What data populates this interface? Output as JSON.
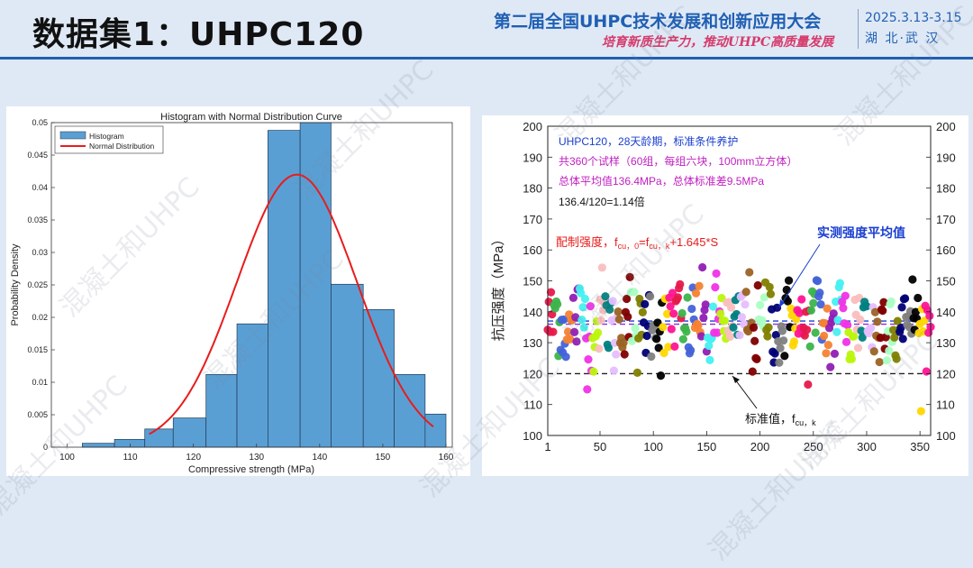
{
  "header": {
    "title": "数据集1：UHPC120",
    "conference": "第二届全国UHPC技术发展和创新应用大会",
    "slogan": "培育新质生产力，推动UHPC高质量发展",
    "date": "2025.3.13-3.15",
    "location": "湖 北·武 汉"
  },
  "watermark": "混凝土和UHPC",
  "colors": {
    "bar_fill": "#5a9fd4",
    "curve": "#e81c1c",
    "header_blue": "#1f5fb4",
    "slogan_red": "#d63a6b"
  },
  "chart_data": [
    {
      "type": "bar",
      "title": "Histogram with Normal Distribution Curve",
      "xlabel": "Compressive strength (MPa)",
      "ylabel": "Probability Density",
      "xlim": [
        97.5,
        161
      ],
      "ylim": [
        0,
        0.05
      ],
      "xticks": [
        100,
        110,
        120,
        130,
        140,
        150,
        160
      ],
      "yticks": [
        0,
        0.005,
        0.01,
        0.015,
        0.02,
        0.025,
        0.03,
        0.035,
        0.04,
        0.045,
        0.05
      ],
      "legend": {
        "position": "top-left",
        "entries": [
          "Histogram",
          "Normal Distribution"
        ]
      },
      "bins": [
        {
          "x0": 102.4,
          "x1": 107.5,
          "value": 0.0006
        },
        {
          "x0": 107.5,
          "x1": 112.3,
          "value": 0.0012
        },
        {
          "x0": 112.3,
          "x1": 116.8,
          "value": 0.0028
        },
        {
          "x0": 116.8,
          "x1": 122.0,
          "value": 0.0045
        },
        {
          "x0": 122.0,
          "x1": 126.9,
          "value": 0.0112
        },
        {
          "x0": 126.9,
          "x1": 131.8,
          "value": 0.019
        },
        {
          "x0": 131.8,
          "x1": 136.9,
          "value": 0.0488
        },
        {
          "x0": 136.9,
          "x1": 141.8,
          "value": 0.05
        },
        {
          "x0": 141.8,
          "x1": 146.9,
          "value": 0.0251
        },
        {
          "x0": 146.9,
          "x1": 151.8,
          "value": 0.0212
        },
        {
          "x0": 151.8,
          "x1": 156.7,
          "value": 0.0112
        },
        {
          "x0": 156.7,
          "x1": 160.0,
          "value": 0.0051
        }
      ],
      "normal": {
        "mean": 136.4,
        "sd": 9.5,
        "x_range": [
          113,
          158
        ]
      }
    },
    {
      "type": "scatter",
      "xlim": [
        1,
        360
      ],
      "ylim": [
        100,
        200
      ],
      "xticks": [
        1,
        50,
        100,
        150,
        200,
        250,
        300,
        350
      ],
      "yticks": [
        100,
        110,
        120,
        130,
        140,
        150,
        160,
        170,
        180,
        190,
        200
      ],
      "ylabel": "抗压强度（MPa）",
      "n_points": 360,
      "mean": 136.4,
      "sd": 9.5,
      "reference_lines": [
        {
          "y": 137.0,
          "color": "#1a3fd0",
          "style": "dash"
        },
        {
          "y": 136.0,
          "color": "#8a2be2",
          "style": "dash"
        },
        {
          "y": 120,
          "color": "#222222",
          "style": "dash"
        }
      ],
      "annotations": [
        {
          "text": "UHPC120，28天龄期，标准条件养护",
          "color": "#1a3fd0"
        },
        {
          "text": "共360个试样（60组，每组六块，100mm立方体）",
          "color": "#c020c0"
        },
        {
          "text": "总体平均值136.4MPa，总体标准差9.5MPa",
          "color": "#c020c0"
        },
        {
          "text": "136.4/120=1.14倍",
          "color": "#111111"
        }
      ],
      "labels": {
        "design_strength": "配制强度，f",
        "design_formula": "=f",
        "design_tail": "+1.645*S",
        "sub_design": "cu，0",
        "sub_char": "cu，k",
        "mean_label": "实测强度平均值",
        "char_label": "标准值，f",
        "char_sub": "cu，k"
      }
    }
  ]
}
